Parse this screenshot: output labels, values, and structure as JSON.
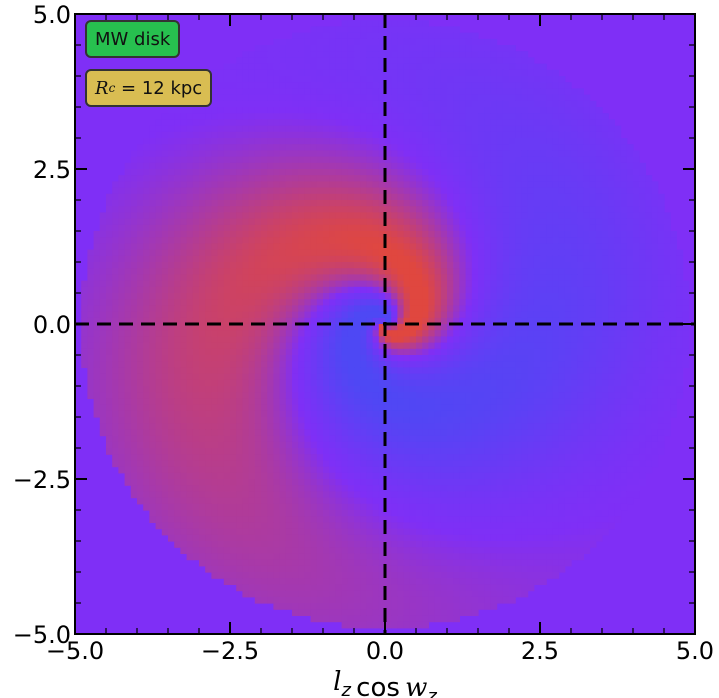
{
  "chart_data": {
    "type": "heatmap",
    "title": "",
    "xlabel": "l_z cos w_z",
    "ylabel": "",
    "xlim": [
      -5.0,
      5.0
    ],
    "ylim": [
      -5.0,
      5.0
    ],
    "x_ticks": [
      -5.0,
      -2.5,
      0.0,
      2.5,
      5.0
    ],
    "y_ticks": [
      -5.0,
      -2.5,
      0.0,
      2.5,
      5.0
    ],
    "x_tick_labels": [
      "−5.0",
      "−2.5",
      "0.0",
      "2.5",
      "5.0"
    ],
    "y_tick_labels": [
      "−5.0",
      "−2.5",
      "0.0",
      "2.5",
      "5.0"
    ],
    "reference_lines": [
      {
        "orientation": "vertical",
        "value": 0.0
      },
      {
        "orientation": "horizontal",
        "value": 0.0
      }
    ],
    "spiral_extent_radius": 4.9,
    "background_color": "#7f2ff6",
    "color_positive": "#e0473f",
    "color_negative": "#4e48f4",
    "annotations": [
      {
        "id": "component",
        "text": "MW disk",
        "color": "#27c04f"
      },
      {
        "id": "radius",
        "symbol": "R",
        "subscript": "c",
        "text": " = 12 kpc",
        "color": "#d9bd52"
      }
    ]
  }
}
